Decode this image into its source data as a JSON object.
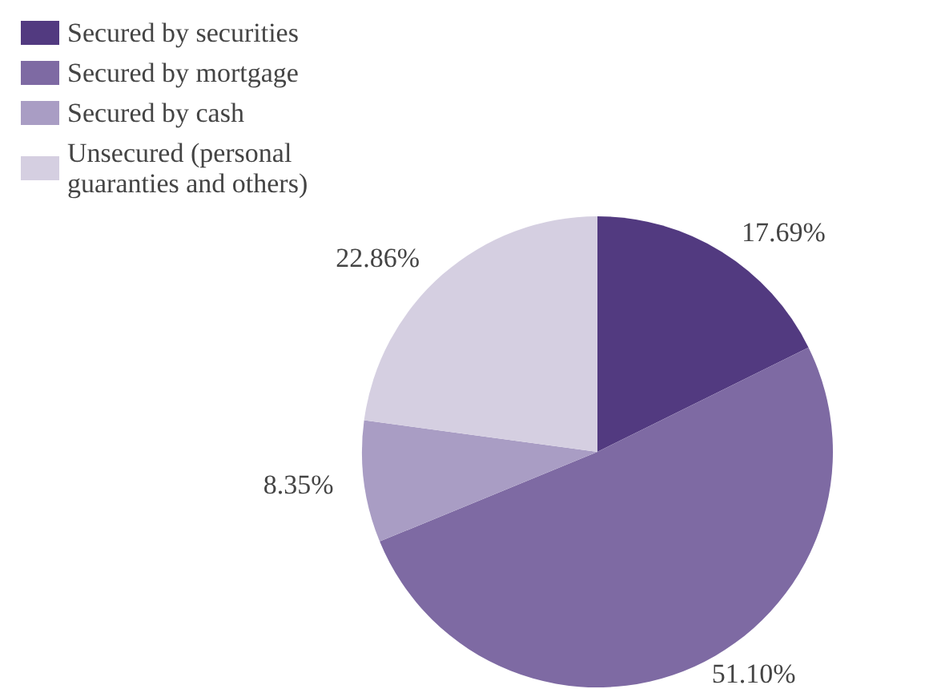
{
  "chart_data": {
    "type": "pie",
    "categories": [
      "Secured by securities",
      "Secured by mortgage",
      "Secured by cash",
      "Unsecured (personal guaranties and others)"
    ],
    "values": [
      17.69,
      51.1,
      8.35,
      22.86
    ],
    "colors": [
      "#523a80",
      "#7e6aa3",
      "#a99dc4",
      "#d5cfe1"
    ],
    "value_labels": [
      "17.69%",
      "51.10%",
      "8.35%",
      "22.86%"
    ],
    "legend": "top left"
  }
}
